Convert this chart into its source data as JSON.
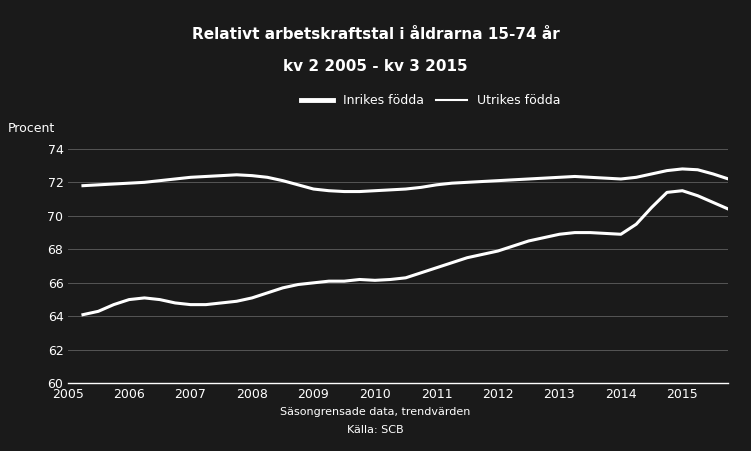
{
  "title_line1": "Relativt arbetskraftstal i åldrarna 15-74 år",
  "title_line2": "kv 2 2005 - kv 3 2015",
  "ylabel": "Procent",
  "footnote1": "Säsongrensade data, trendvärden",
  "footnote2": "Källa: SCB",
  "legend_inrikes": "Inrikes födda",
  "legend_utrikes": "Utrikes födda",
  "xlim": [
    2005.25,
    2015.75
  ],
  "ylim": [
    60,
    74
  ],
  "yticks": [
    60,
    62,
    64,
    66,
    68,
    70,
    72,
    74
  ],
  "xticks": [
    2005,
    2006,
    2007,
    2008,
    2009,
    2010,
    2011,
    2012,
    2013,
    2014,
    2015
  ],
  "background_color": "#1a1a1a",
  "line_color": "#ffffff",
  "text_color": "#ffffff",
  "grid_color": "#555555",
  "inrikes_x": [
    2005.25,
    2005.5,
    2005.75,
    2006.0,
    2006.25,
    2006.5,
    2006.75,
    2007.0,
    2007.25,
    2007.5,
    2007.75,
    2008.0,
    2008.25,
    2008.5,
    2008.75,
    2009.0,
    2009.25,
    2009.5,
    2009.75,
    2010.0,
    2010.25,
    2010.5,
    2010.75,
    2011.0,
    2011.25,
    2011.5,
    2011.75,
    2012.0,
    2012.25,
    2012.5,
    2012.75,
    2013.0,
    2013.25,
    2013.5,
    2013.75,
    2014.0,
    2014.25,
    2014.5,
    2014.75,
    2015.0,
    2015.25,
    2015.5,
    2015.75
  ],
  "inrikes_y": [
    71.8,
    71.85,
    71.9,
    71.95,
    72.0,
    72.1,
    72.2,
    72.3,
    72.35,
    72.4,
    72.45,
    72.4,
    72.3,
    72.1,
    71.85,
    71.6,
    71.5,
    71.45,
    71.45,
    71.5,
    71.55,
    71.6,
    71.7,
    71.85,
    71.95,
    72.0,
    72.05,
    72.1,
    72.15,
    72.2,
    72.25,
    72.3,
    72.35,
    72.3,
    72.25,
    72.2,
    72.3,
    72.5,
    72.7,
    72.8,
    72.75,
    72.5,
    72.2
  ],
  "utrikes_x": [
    2005.25,
    2005.5,
    2005.75,
    2006.0,
    2006.25,
    2006.5,
    2006.75,
    2007.0,
    2007.25,
    2007.5,
    2007.75,
    2008.0,
    2008.25,
    2008.5,
    2008.75,
    2009.0,
    2009.25,
    2009.5,
    2009.75,
    2010.0,
    2010.25,
    2010.5,
    2010.75,
    2011.0,
    2011.25,
    2011.5,
    2011.75,
    2012.0,
    2012.25,
    2012.5,
    2012.75,
    2013.0,
    2013.25,
    2013.5,
    2013.75,
    2014.0,
    2014.25,
    2014.5,
    2014.75,
    2015.0,
    2015.25,
    2015.5,
    2015.75
  ],
  "utrikes_y": [
    64.1,
    64.3,
    64.7,
    65.0,
    65.1,
    65.0,
    64.8,
    64.7,
    64.7,
    64.8,
    64.9,
    65.1,
    65.4,
    65.7,
    65.9,
    66.0,
    66.1,
    66.1,
    66.2,
    66.15,
    66.2,
    66.3,
    66.6,
    66.9,
    67.2,
    67.5,
    67.7,
    67.9,
    68.2,
    68.5,
    68.7,
    68.9,
    69.0,
    69.0,
    68.95,
    68.9,
    69.5,
    70.5,
    71.4,
    71.5,
    71.2,
    70.8,
    70.4
  ]
}
